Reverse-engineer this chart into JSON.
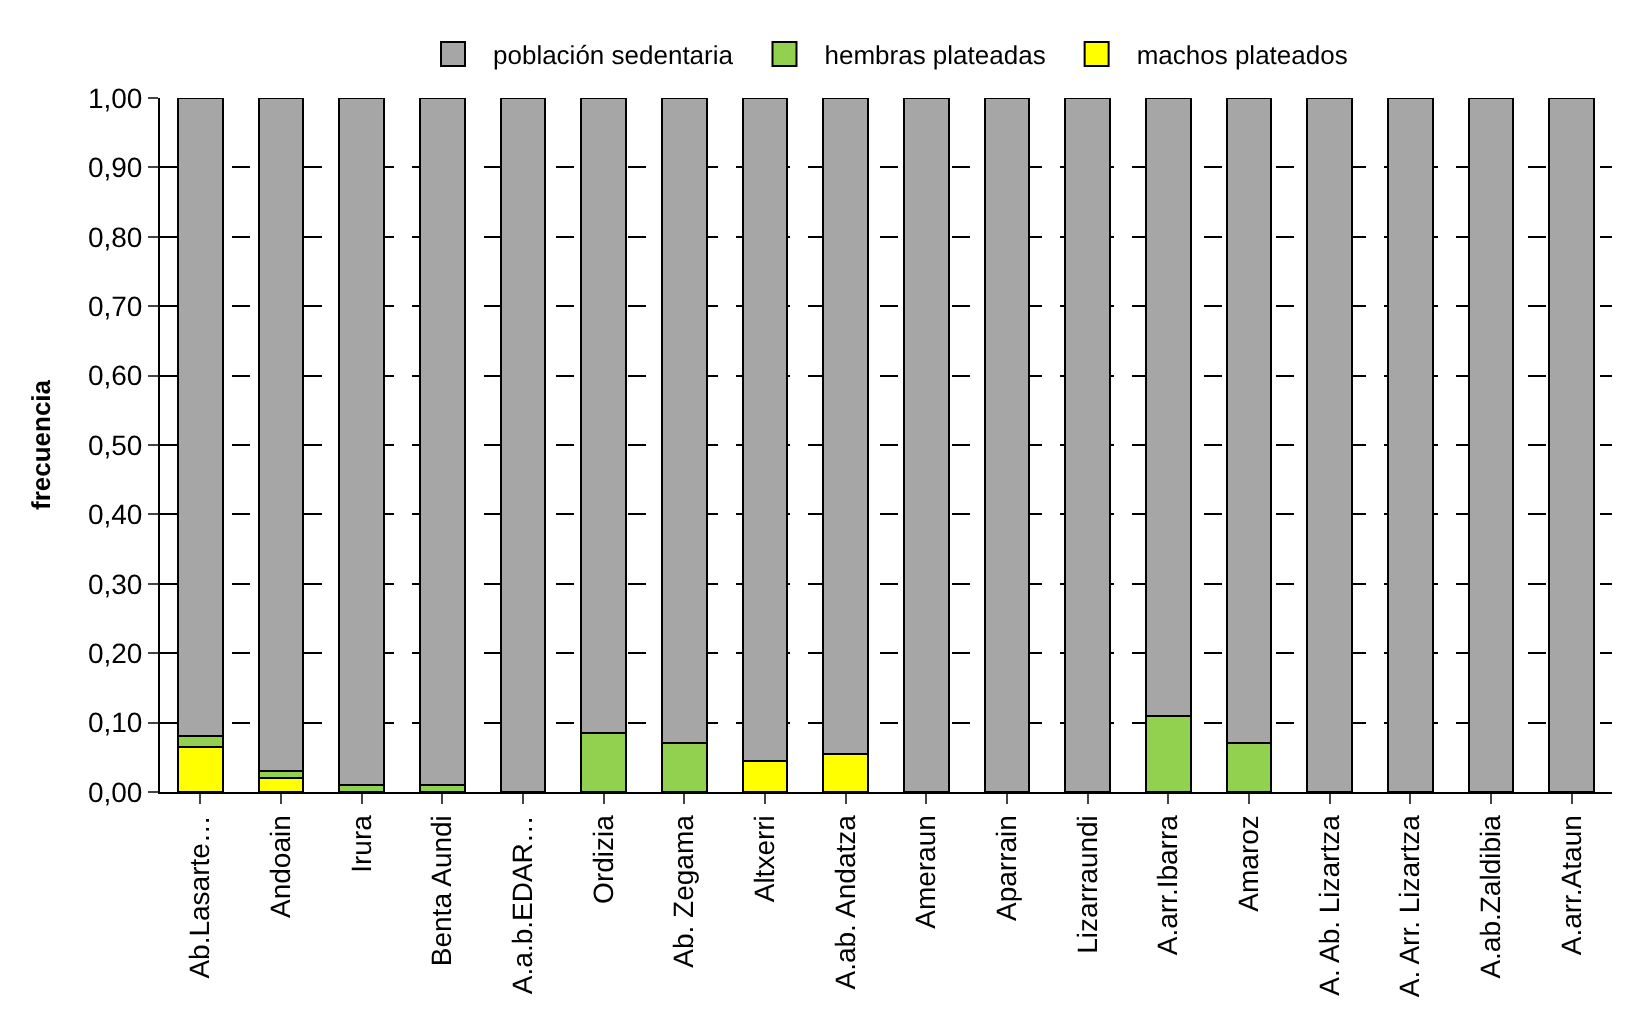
{
  "chart_data": {
    "type": "bar",
    "stacked": true,
    "ylabel": "frecuencia",
    "categories": [
      "Ab.Lasarte…",
      "Andoain",
      "Irura",
      "Benta Aundi",
      "A.a.b.EDAR…",
      "Ordizia",
      "Ab. Zegama",
      "Altxerri",
      "A.ab. Andatza",
      "Ameraun",
      "Aparrain",
      "Lizarraundi",
      "A.arr.Ibarra",
      "Amaroz",
      "A. Ab. Lizartza",
      "A. Arr. Lizartza",
      "A.ab.Zaldibia",
      "A.arr.Ataun"
    ],
    "series": [
      {
        "name": "machos plateados",
        "color": "#ffff00",
        "values": [
          0.065,
          0.02,
          0,
          0,
          0,
          0,
          0,
          0.045,
          0.055,
          0,
          0,
          0,
          0,
          0,
          0,
          0,
          0,
          0
        ]
      },
      {
        "name": "hembras plateadas",
        "color": "#92d050",
        "values": [
          0.015,
          0.01,
          0.01,
          0.01,
          0,
          0.085,
          0.07,
          0,
          0,
          0,
          0,
          0,
          0.11,
          0.07,
          0,
          0,
          0,
          0
        ]
      },
      {
        "name": "población sedentaria",
        "color": "#a6a6a6",
        "values": [
          0.92,
          0.97,
          0.99,
          0.99,
          1,
          0.915,
          0.93,
          0.955,
          0.945,
          1,
          1,
          1,
          0.89,
          0.93,
          1,
          1,
          1,
          1
        ]
      }
    ],
    "ylim": [
      0,
      1
    ],
    "yticks": [
      {
        "value": 0,
        "label": "0,00"
      },
      {
        "value": 0.1,
        "label": "0,10"
      },
      {
        "value": 0.2,
        "label": "0,20"
      },
      {
        "value": 0.3,
        "label": "0,30"
      },
      {
        "value": 0.4,
        "label": "0,40"
      },
      {
        "value": 0.5,
        "label": "0,50"
      },
      {
        "value": 0.6,
        "label": "0,60"
      },
      {
        "value": 0.7,
        "label": "0,70"
      },
      {
        "value": 0.8,
        "label": "0,80"
      },
      {
        "value": 0.9,
        "label": "0,90"
      },
      {
        "value": 1,
        "label": "1,00"
      }
    ],
    "grid": "y",
    "legend": "top"
  }
}
